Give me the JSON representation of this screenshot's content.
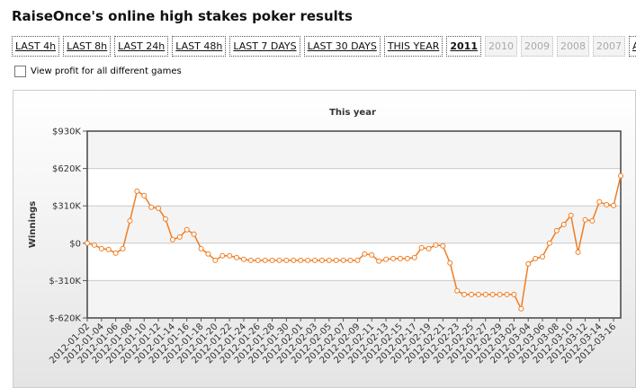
{
  "header": {
    "title": "RaiseOnce's online high stakes poker results"
  },
  "buttons": [
    {
      "label": "LAST 4h"
    },
    {
      "label": "LAST 8h"
    },
    {
      "label": "LAST 24h"
    },
    {
      "label": "LAST 48h"
    },
    {
      "label": "LAST 7 DAYS"
    },
    {
      "label": "LAST 30 DAYS"
    },
    {
      "label": "THIS YEAR"
    },
    {
      "label": "2011",
      "selected": true
    },
    {
      "label": "2010",
      "disabled": true
    },
    {
      "label": "2009",
      "disabled": true
    },
    {
      "label": "2008",
      "disabled": true
    },
    {
      "label": "2007",
      "disabled": true
    },
    {
      "label": "ALL"
    }
  ],
  "checkbox": {
    "label": "View profit for all different games",
    "checked": false
  },
  "chart_data": {
    "type": "line",
    "title": "This year",
    "y_label": "Winnings",
    "categories": [
      "2012-01-02",
      null,
      "2012-01-04",
      null,
      "2012-01-06",
      null,
      "2012-01-08",
      null,
      "2012-01-10",
      null,
      "2012-01-12",
      null,
      "2012-01-14",
      null,
      "2012-01-16",
      null,
      "2012-01-18",
      null,
      "2012-01-20",
      null,
      "2012-01-22",
      null,
      "2012-01-24",
      null,
      "2012-01-26",
      null,
      "2012-01-28",
      null,
      "2012-01-30",
      null,
      "2012-02-01",
      null,
      "2012-02-03",
      null,
      "2012-02-05",
      null,
      "2012-02-07",
      null,
      "2012-02-09",
      null,
      "2012-02-11",
      null,
      "2012-02-13",
      null,
      "2012-02-15",
      null,
      "2012-02-17",
      null,
      "2012-02-19",
      null,
      "2012-02-21",
      null,
      "2012-02-23",
      null,
      "2012-02-25",
      null,
      "2012-02-27",
      null,
      "2012-02-29",
      null,
      "2012-03-02",
      null,
      "2012-03-04",
      null,
      "2012-03-06",
      null,
      "2012-03-08",
      null,
      "2012-03-10",
      null,
      "2012-03-12",
      null,
      "2012-03-14",
      null,
      "2012-03-16",
      null
    ],
    "series": [
      {
        "name": "Winnings",
        "color": "#f07d22",
        "values": [
          0,
          -15000,
          -45000,
          -52000,
          -82000,
          -45000,
          186000,
          432000,
          395000,
          298000,
          290000,
          201000,
          30000,
          52000,
          112000,
          75000,
          -45000,
          -89000,
          -142000,
          -104000,
          -104000,
          -119000,
          -134000,
          -142000,
          -142000,
          -142000,
          -142000,
          -142000,
          -142000,
          -142000,
          -142000,
          -142000,
          -142000,
          -142000,
          -142000,
          -142000,
          -142000,
          -142000,
          -142000,
          -89000,
          -97000,
          -149000,
          -134000,
          -127000,
          -127000,
          -127000,
          -119000,
          -37000,
          -45000,
          -15000,
          -22000,
          -164000,
          -395000,
          -425000,
          -425000,
          -425000,
          -425000,
          -425000,
          -425000,
          -425000,
          -425000,
          -544000,
          -171000,
          -127000,
          -112000,
          0,
          104000,
          156000,
          231000,
          -75000,
          194000,
          186000,
          343000,
          320000,
          313000,
          559000
        ]
      }
    ],
    "ylim": [
      -620000,
      930000
    ],
    "yticks": [
      {
        "value": -620000,
        "label": "$-620K"
      },
      {
        "value": -310000,
        "label": "$-310K"
      },
      {
        "value": 0,
        "label": "$0"
      },
      {
        "value": 310000,
        "label": "$310K"
      },
      {
        "value": 620000,
        "label": "$620K"
      },
      {
        "value": 930000,
        "label": "$930K"
      }
    ],
    "grid": true
  }
}
